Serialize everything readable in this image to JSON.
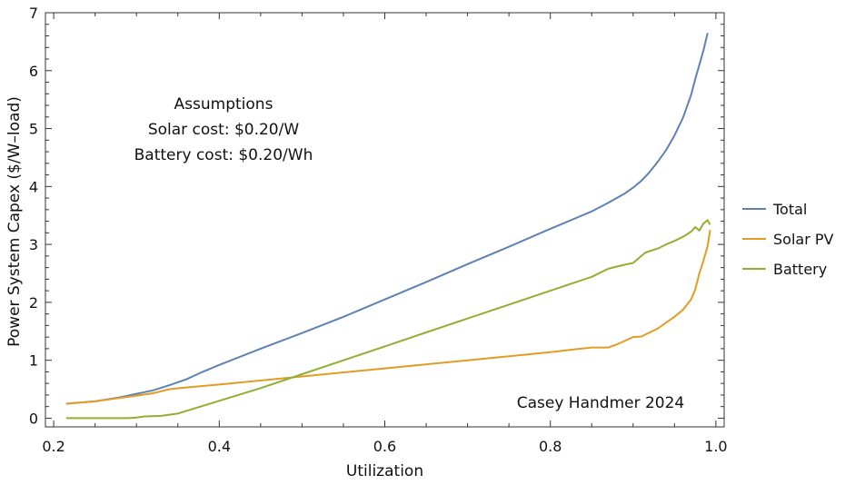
{
  "chart_data": {
    "type": "line",
    "title": "",
    "xlabel": "Utilization",
    "ylabel": "Power System Capex ($/W–load)",
    "xlim": [
      0.19,
      1.01
    ],
    "ylim": [
      -0.15,
      7.0
    ],
    "xticks": [
      {
        "value": 0.2,
        "label": "0.2"
      },
      {
        "value": 0.4,
        "label": "0.4"
      },
      {
        "value": 0.6,
        "label": "0.6"
      },
      {
        "value": 0.8,
        "label": "0.8"
      },
      {
        "value": 1.0,
        "label": "1.0"
      }
    ],
    "yticks": [
      {
        "value": 0,
        "label": "0"
      },
      {
        "value": 1,
        "label": "1"
      },
      {
        "value": 2,
        "label": "2"
      },
      {
        "value": 3,
        "label": "3"
      },
      {
        "value": 4,
        "label": "4"
      },
      {
        "value": 5,
        "label": "5"
      },
      {
        "value": 6,
        "label": "6"
      },
      {
        "value": 7,
        "label": "7"
      }
    ],
    "grid": false,
    "legend_position": "right",
    "annotations": {
      "assumptions": [
        "Assumptions",
        "Solar cost: $0.20/W",
        "Battery cost: $0.20/Wh"
      ],
      "credit": "Casey Handmer 2024"
    },
    "series": [
      {
        "name": "Total",
        "color": "#5e81b5",
        "points": [
          [
            0.215,
            0.25
          ],
          [
            0.25,
            0.29
          ],
          [
            0.28,
            0.36
          ],
          [
            0.3,
            0.42
          ],
          [
            0.32,
            0.48
          ],
          [
            0.34,
            0.57
          ],
          [
            0.36,
            0.67
          ],
          [
            0.38,
            0.8
          ],
          [
            0.4,
            0.92
          ],
          [
            0.45,
            1.2
          ],
          [
            0.5,
            1.47
          ],
          [
            0.55,
            1.75
          ],
          [
            0.6,
            2.05
          ],
          [
            0.65,
            2.35
          ],
          [
            0.7,
            2.66
          ],
          [
            0.75,
            2.96
          ],
          [
            0.8,
            3.27
          ],
          [
            0.85,
            3.57
          ],
          [
            0.87,
            3.72
          ],
          [
            0.89,
            3.88
          ],
          [
            0.9,
            3.98
          ],
          [
            0.91,
            4.1
          ],
          [
            0.92,
            4.25
          ],
          [
            0.93,
            4.43
          ],
          [
            0.94,
            4.63
          ],
          [
            0.95,
            4.88
          ],
          [
            0.96,
            5.18
          ],
          [
            0.97,
            5.58
          ],
          [
            0.975,
            5.85
          ],
          [
            0.98,
            6.1
          ],
          [
            0.985,
            6.35
          ],
          [
            0.99,
            6.65
          ]
        ]
      },
      {
        "name": "Solar PV",
        "color": "#e19c24",
        "points": [
          [
            0.215,
            0.25
          ],
          [
            0.25,
            0.29
          ],
          [
            0.28,
            0.35
          ],
          [
            0.3,
            0.39
          ],
          [
            0.32,
            0.43
          ],
          [
            0.34,
            0.5
          ],
          [
            0.36,
            0.53
          ],
          [
            0.4,
            0.58
          ],
          [
            0.5,
            0.72
          ],
          [
            0.6,
            0.86
          ],
          [
            0.7,
            1.0
          ],
          [
            0.8,
            1.14
          ],
          [
            0.85,
            1.22
          ],
          [
            0.87,
            1.22
          ],
          [
            0.88,
            1.27
          ],
          [
            0.9,
            1.4
          ],
          [
            0.91,
            1.41
          ],
          [
            0.93,
            1.55
          ],
          [
            0.95,
            1.75
          ],
          [
            0.96,
            1.87
          ],
          [
            0.97,
            2.05
          ],
          [
            0.975,
            2.22
          ],
          [
            0.98,
            2.5
          ],
          [
            0.985,
            2.72
          ],
          [
            0.99,
            2.97
          ],
          [
            0.993,
            3.25
          ]
        ]
      },
      {
        "name": "Battery",
        "color": "#8fb032",
        "points": [
          [
            0.215,
            0.0
          ],
          [
            0.25,
            0.0
          ],
          [
            0.29,
            0.0
          ],
          [
            0.3,
            0.01
          ],
          [
            0.31,
            0.03
          ],
          [
            0.33,
            0.04
          ],
          [
            0.35,
            0.08
          ],
          [
            0.4,
            0.3
          ],
          [
            0.45,
            0.52
          ],
          [
            0.5,
            0.76
          ],
          [
            0.55,
            1.0
          ],
          [
            0.6,
            1.24
          ],
          [
            0.65,
            1.48
          ],
          [
            0.7,
            1.72
          ],
          [
            0.75,
            1.96
          ],
          [
            0.8,
            2.2
          ],
          [
            0.85,
            2.44
          ],
          [
            0.87,
            2.58
          ],
          [
            0.89,
            2.65
          ],
          [
            0.9,
            2.68
          ],
          [
            0.915,
            2.86
          ],
          [
            0.93,
            2.93
          ],
          [
            0.94,
            3.0
          ],
          [
            0.95,
            3.06
          ],
          [
            0.96,
            3.13
          ],
          [
            0.97,
            3.22
          ],
          [
            0.975,
            3.3
          ],
          [
            0.98,
            3.24
          ],
          [
            0.985,
            3.36
          ],
          [
            0.99,
            3.42
          ],
          [
            0.993,
            3.34
          ]
        ]
      }
    ]
  }
}
